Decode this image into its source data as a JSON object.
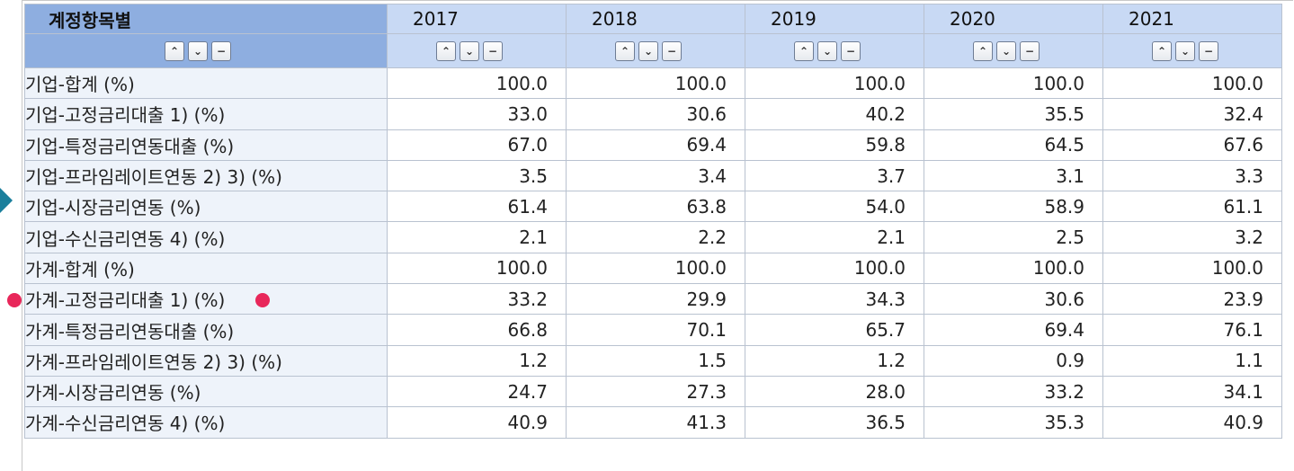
{
  "header": {
    "label_col": "계정항목별",
    "years": [
      "2017",
      "2018",
      "2019",
      "2020",
      "2021"
    ]
  },
  "sort_buttons": {
    "up": "⌃",
    "down": "⌄",
    "remove": "−"
  },
  "rows": [
    {
      "name": "기업-합계 (%)",
      "level": 0,
      "values": [
        "100.0",
        "100.0",
        "100.0",
        "100.0",
        "100.0"
      ]
    },
    {
      "name": "기업-고정금리대출 1) (%)",
      "level": 1,
      "values": [
        "33.0",
        "30.6",
        "40.2",
        "35.5",
        "32.4"
      ]
    },
    {
      "name": "기업-특정금리연동대출 (%)",
      "level": 1,
      "values": [
        "67.0",
        "69.4",
        "59.8",
        "64.5",
        "67.6"
      ]
    },
    {
      "name": "기업-프라임레이트연동 2) 3) (%)",
      "level": 2,
      "values": [
        "3.5",
        "3.4",
        "3.7",
        "3.1",
        "3.3"
      ]
    },
    {
      "name": "기업-시장금리연동 (%)",
      "level": 2,
      "values": [
        "61.4",
        "63.8",
        "54.0",
        "58.9",
        "61.1"
      ]
    },
    {
      "name": "기업-수신금리연동 4) (%)",
      "level": 2,
      "values": [
        "2.1",
        "2.2",
        "2.1",
        "2.5",
        "3.2"
      ]
    },
    {
      "name": "가계-합계 (%)",
      "level": 0,
      "values": [
        "100.0",
        "100.0",
        "100.0",
        "100.0",
        "100.0"
      ]
    },
    {
      "name": "가계-고정금리대출 1) (%)",
      "level": 1,
      "marked": true,
      "values": [
        "33.2",
        "29.9",
        "34.3",
        "30.6",
        "23.9"
      ]
    },
    {
      "name": "가계-특정금리연동대출 (%)",
      "level": 1,
      "values": [
        "66.8",
        "70.1",
        "65.7",
        "69.4",
        "76.1"
      ]
    },
    {
      "name": "가계-프라임레이트연동 2) 3) (%)",
      "level": 2,
      "values": [
        "1.2",
        "1.5",
        "1.2",
        "0.9",
        "1.1"
      ]
    },
    {
      "name": "가계-시장금리연동 (%)",
      "level": 2,
      "values": [
        "24.7",
        "27.3",
        "28.0",
        "33.2",
        "34.1"
      ]
    },
    {
      "name": "가계-수신금리연동 4) (%)",
      "level": 2,
      "values": [
        "40.9",
        "41.3",
        "36.5",
        "35.3",
        "40.9"
      ]
    }
  ],
  "colors": {
    "marker": "#e8275a",
    "header_dark": "#8eaee0",
    "header_light": "#c8d9f4",
    "label_bg": "#eef3fa"
  }
}
